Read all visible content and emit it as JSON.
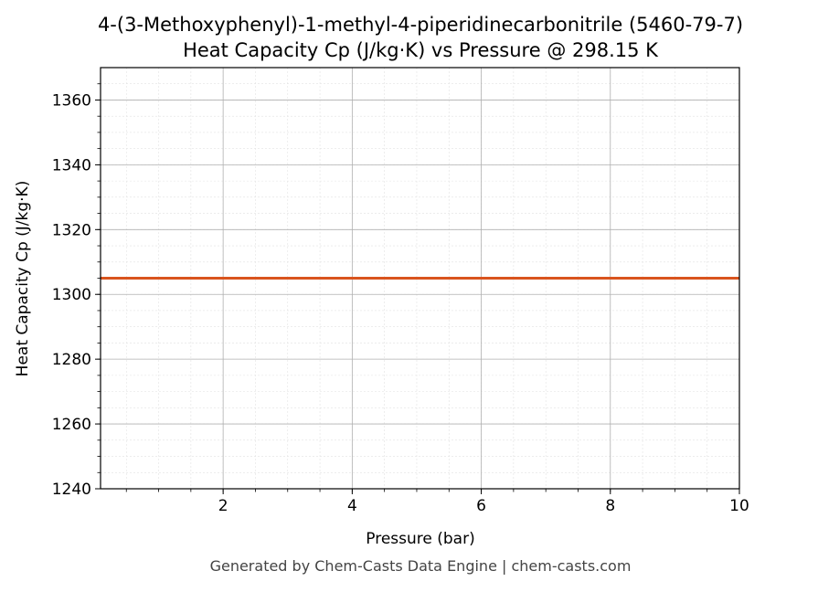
{
  "chart_data": {
    "type": "line",
    "title": "4-(3-Methoxyphenyl)-1-methyl-4-piperidinecarbonitrile (5460-79-7)",
    "subtitle": "Heat Capacity Cp (J/kg·K) vs Pressure @ 298.15 K",
    "xlabel": "Pressure (bar)",
    "ylabel": "Heat Capacity Cp (J/kg·K)",
    "xlim": [
      0.1,
      10
    ],
    "ylim": [
      1240,
      1370
    ],
    "xticks": [
      2,
      4,
      6,
      8,
      10
    ],
    "yticks": [
      1240,
      1260,
      1280,
      1300,
      1320,
      1340,
      1360
    ],
    "grid": true,
    "series": [
      {
        "x": [
          0.1,
          10
        ],
        "y": [
          1305,
          1305
        ],
        "color": "#d9541e"
      }
    ]
  },
  "footer": "Generated by Chem-Casts Data Engine | chem-casts.com"
}
